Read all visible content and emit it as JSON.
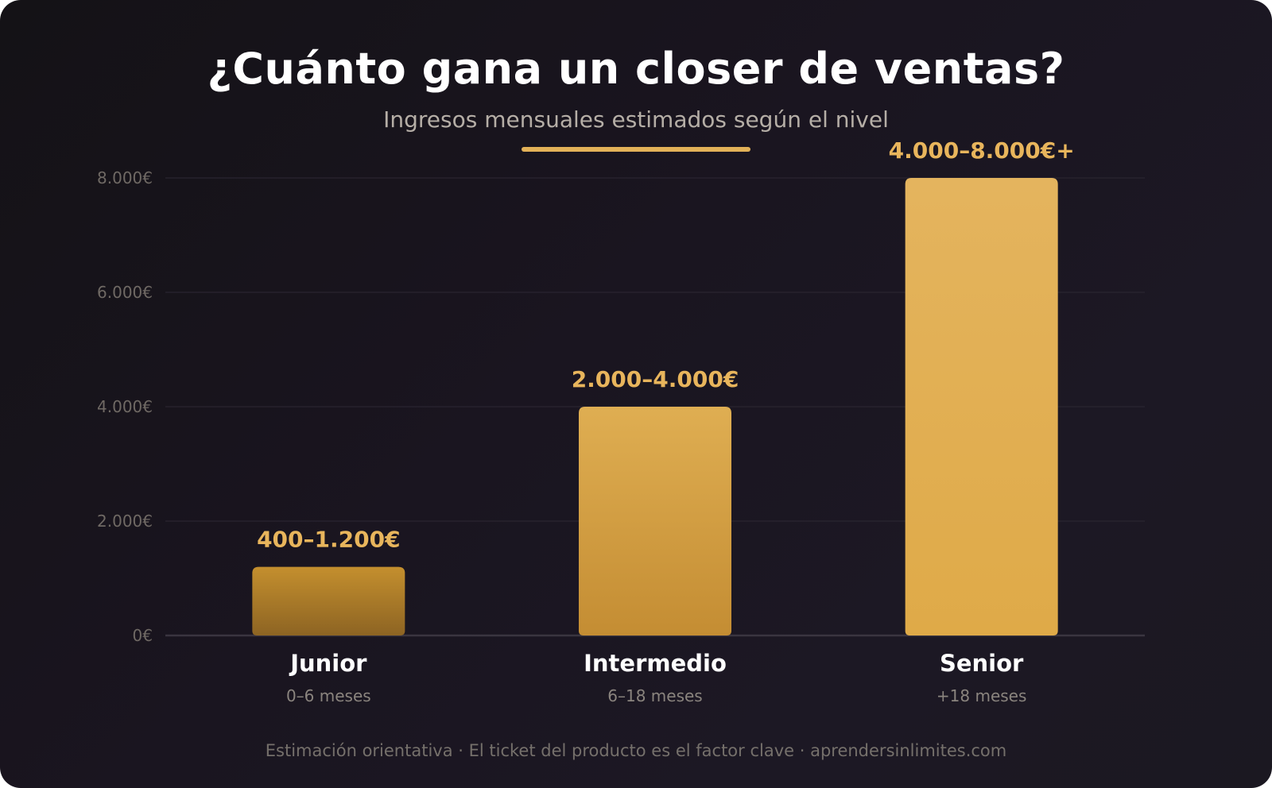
{
  "header": {
    "title": "¿Cuánto gana un closer de ventas?",
    "subtitle": "Ingresos mensuales estimados según el nivel"
  },
  "footer": {
    "text": "Estimación orientativa · El ticket del producto es el factor clave · aprendersinlimites.com"
  },
  "colors": {
    "accent": "#e2b158",
    "background": "#1a1620",
    "title": "#ffffff",
    "value_label": "#e8b55c",
    "bar_junior_top": "#c48f2e",
    "bar_junior_bottom": "#8d6423",
    "bar_intermedio_top": "#dfae52",
    "bar_intermedio_bottom": "#c48d33",
    "bar_senior_top": "#e4b45e",
    "bar_senior_bottom": "#dfaa48"
  },
  "chart_data": {
    "type": "bar",
    "title": "¿Cuánto gana un closer de ventas?",
    "subtitle": "Ingresos mensuales estimados según el nivel",
    "categories": [
      "Junior",
      "Intermedio",
      "Senior"
    ],
    "sublabels": [
      "0–6 meses",
      "6–18 meses",
      "+18 meses"
    ],
    "values": [
      1200,
      4000,
      8000
    ],
    "ranges": [
      [
        400,
        1200
      ],
      [
        2000,
        4000
      ],
      [
        4000,
        8000
      ]
    ],
    "value_labels": [
      "400–1.200€",
      "2.000–4.000€",
      "4.000–8.000€+"
    ],
    "ylim": [
      0,
      8000
    ],
    "yticks": [
      0,
      2000,
      4000,
      6000,
      8000
    ],
    "ytick_labels": [
      "0€",
      "2.000€",
      "4.000€",
      "6.000€",
      "8.000€"
    ],
    "xlabel": "",
    "ylabel": "",
    "grid": true,
    "legend": "none"
  }
}
